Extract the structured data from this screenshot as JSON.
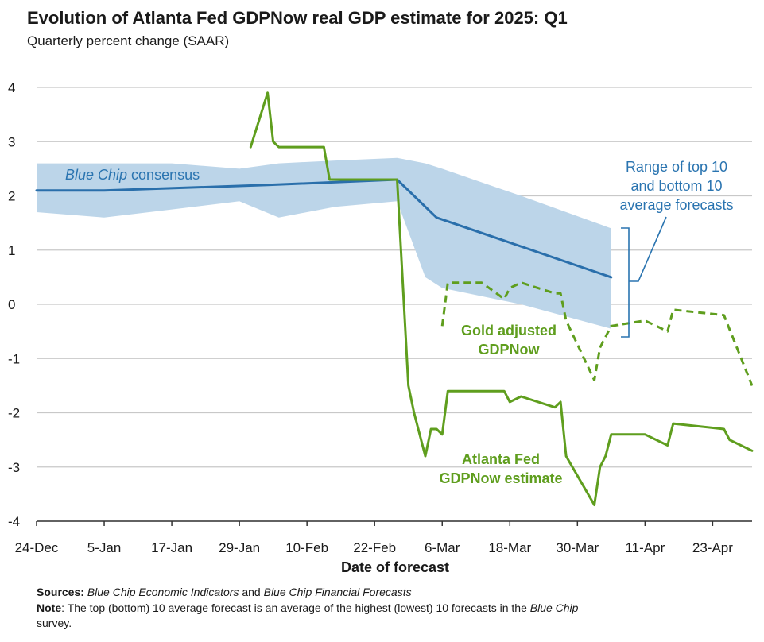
{
  "header": {
    "title": "Evolution of Atlanta Fed GDPNow real GDP estimate for 2025: Q1",
    "subtitle": "Quarterly percent change (SAAR)"
  },
  "footer": {
    "sources_label": "Sources:",
    "sources_italic_1": "Blue Chip Economic Indicators",
    "sources_and": " and ",
    "sources_italic_2": "Blue Chip Financial Forecasts",
    "note_label": "Note",
    "note_text_1": ": The top (bottom) 10 average forecast is an average of the highest (lowest) 10 forecasts in the ",
    "note_italic": "Blue Chip",
    "note_text_2": "survey."
  },
  "colors": {
    "consensus": "#2a6fab",
    "range_band": "#bcd5e9",
    "gdpnow": "#5f9e1e",
    "grid": "#c8c8c8",
    "annotation_blue": "#2a74b0"
  },
  "chart_data": {
    "type": "line",
    "title": "Evolution of Atlanta Fed GDPNow real GDP estimate for 2025: Q1",
    "subtitle": "Quarterly percent change (SAAR)",
    "xlabel": "Date of forecast",
    "ylabel": "",
    "ylim": [
      -4,
      4
    ],
    "yticks": [
      4,
      3,
      2,
      1,
      0,
      -1,
      -2,
      -3,
      -4
    ],
    "ytick_labels": [
      "4",
      "3",
      "2",
      "1",
      "0",
      "-1",
      "-2",
      "-3",
      "-4"
    ],
    "x_axis": {
      "type": "date",
      "start": "2024-12-24",
      "end": "2025-04-30"
    },
    "xticks": [
      "2024-12-24",
      "2025-01-05",
      "2025-01-17",
      "2025-01-29",
      "2025-02-10",
      "2025-02-22",
      "2025-03-06",
      "2025-03-18",
      "2025-03-30",
      "2025-04-11",
      "2025-04-23"
    ],
    "xtick_labels": [
      "24-Dec",
      "5-Jan",
      "17-Jan",
      "29-Jan",
      "10-Feb",
      "22-Feb",
      "6-Mar",
      "18-Mar",
      "30-Mar",
      "11-Apr",
      "23-Apr"
    ],
    "grid": "horizontal",
    "annotations": {
      "consensus_label_italic": "Blue Chip",
      "consensus_label_rest": " consensus",
      "range_label": [
        "Range of top 10",
        "and bottom 10",
        "average forecasts"
      ],
      "gold_label": [
        "Gold adjusted",
        "GDPNow"
      ],
      "gdpnow_label": [
        "Atlanta Fed",
        "GDPNow estimate"
      ]
    },
    "series": [
      {
        "name": "Range of top 10 and bottom 10 average forecasts",
        "kind": "band",
        "x": [
          "2024-12-24",
          "2025-01-05",
          "2025-01-17",
          "2025-01-29",
          "2025-02-05",
          "2025-02-15",
          "2025-02-26",
          "2025-03-03",
          "2025-03-06",
          "2025-03-20",
          "2025-04-05"
        ],
        "upper": [
          2.6,
          2.6,
          2.6,
          2.5,
          2.6,
          2.65,
          2.7,
          2.6,
          2.5,
          2.0,
          1.4
        ],
        "lower": [
          1.7,
          1.6,
          1.75,
          1.9,
          1.6,
          1.8,
          1.9,
          0.5,
          0.3,
          0.0,
          -0.45
        ]
      },
      {
        "name": "Blue Chip consensus",
        "kind": "line",
        "x": [
          "2024-12-24",
          "2025-01-05",
          "2025-02-03",
          "2025-02-26",
          "2025-03-05",
          "2025-04-05"
        ],
        "y": [
          2.1,
          2.1,
          2.2,
          2.3,
          1.6,
          0.5
        ]
      },
      {
        "name": "Atlanta Fed GDPNow estimate",
        "kind": "line",
        "x": [
          "2025-01-31",
          "2025-02-03",
          "2025-02-04",
          "2025-02-05",
          "2025-02-13",
          "2025-02-14",
          "2025-02-17",
          "2025-02-26",
          "2025-02-28",
          "2025-03-01",
          "2025-03-03",
          "2025-03-04",
          "2025-03-05",
          "2025-03-06",
          "2025-03-07",
          "2025-03-13",
          "2025-03-17",
          "2025-03-18",
          "2025-03-20",
          "2025-03-26",
          "2025-03-27",
          "2025-03-28",
          "2025-04-02",
          "2025-04-03",
          "2025-04-04",
          "2025-04-05",
          "2025-04-11",
          "2025-04-15",
          "2025-04-16",
          "2025-04-25",
          "2025-04-26",
          "2025-04-30"
        ],
        "y": [
          2.9,
          3.9,
          3.0,
          2.9,
          2.9,
          2.3,
          2.3,
          2.3,
          -1.5,
          -2.0,
          -2.8,
          -2.3,
          -2.3,
          -2.4,
          -1.6,
          -1.6,
          -1.6,
          -1.8,
          -1.7,
          -1.9,
          -1.8,
          -2.8,
          -3.7,
          -3.0,
          -2.8,
          -2.4,
          -2.4,
          -2.6,
          -2.2,
          -2.3,
          -2.5,
          -2.7
        ]
      },
      {
        "name": "Gold adjusted GDPNow",
        "kind": "dashed",
        "x": [
          "2025-03-06",
          "2025-03-07",
          "2025-03-13",
          "2025-03-17",
          "2025-03-18",
          "2025-03-20",
          "2025-03-26",
          "2025-03-27",
          "2025-03-28",
          "2025-04-02",
          "2025-04-03",
          "2025-04-04",
          "2025-04-05",
          "2025-04-11",
          "2025-04-15",
          "2025-04-16",
          "2025-04-25",
          "2025-04-30"
        ],
        "y": [
          -0.4,
          0.4,
          0.4,
          0.1,
          0.3,
          0.4,
          0.2,
          0.2,
          -0.3,
          -1.4,
          -0.8,
          -0.6,
          -0.4,
          -0.3,
          -0.5,
          -0.1,
          -0.2,
          -1.5
        ]
      }
    ]
  }
}
